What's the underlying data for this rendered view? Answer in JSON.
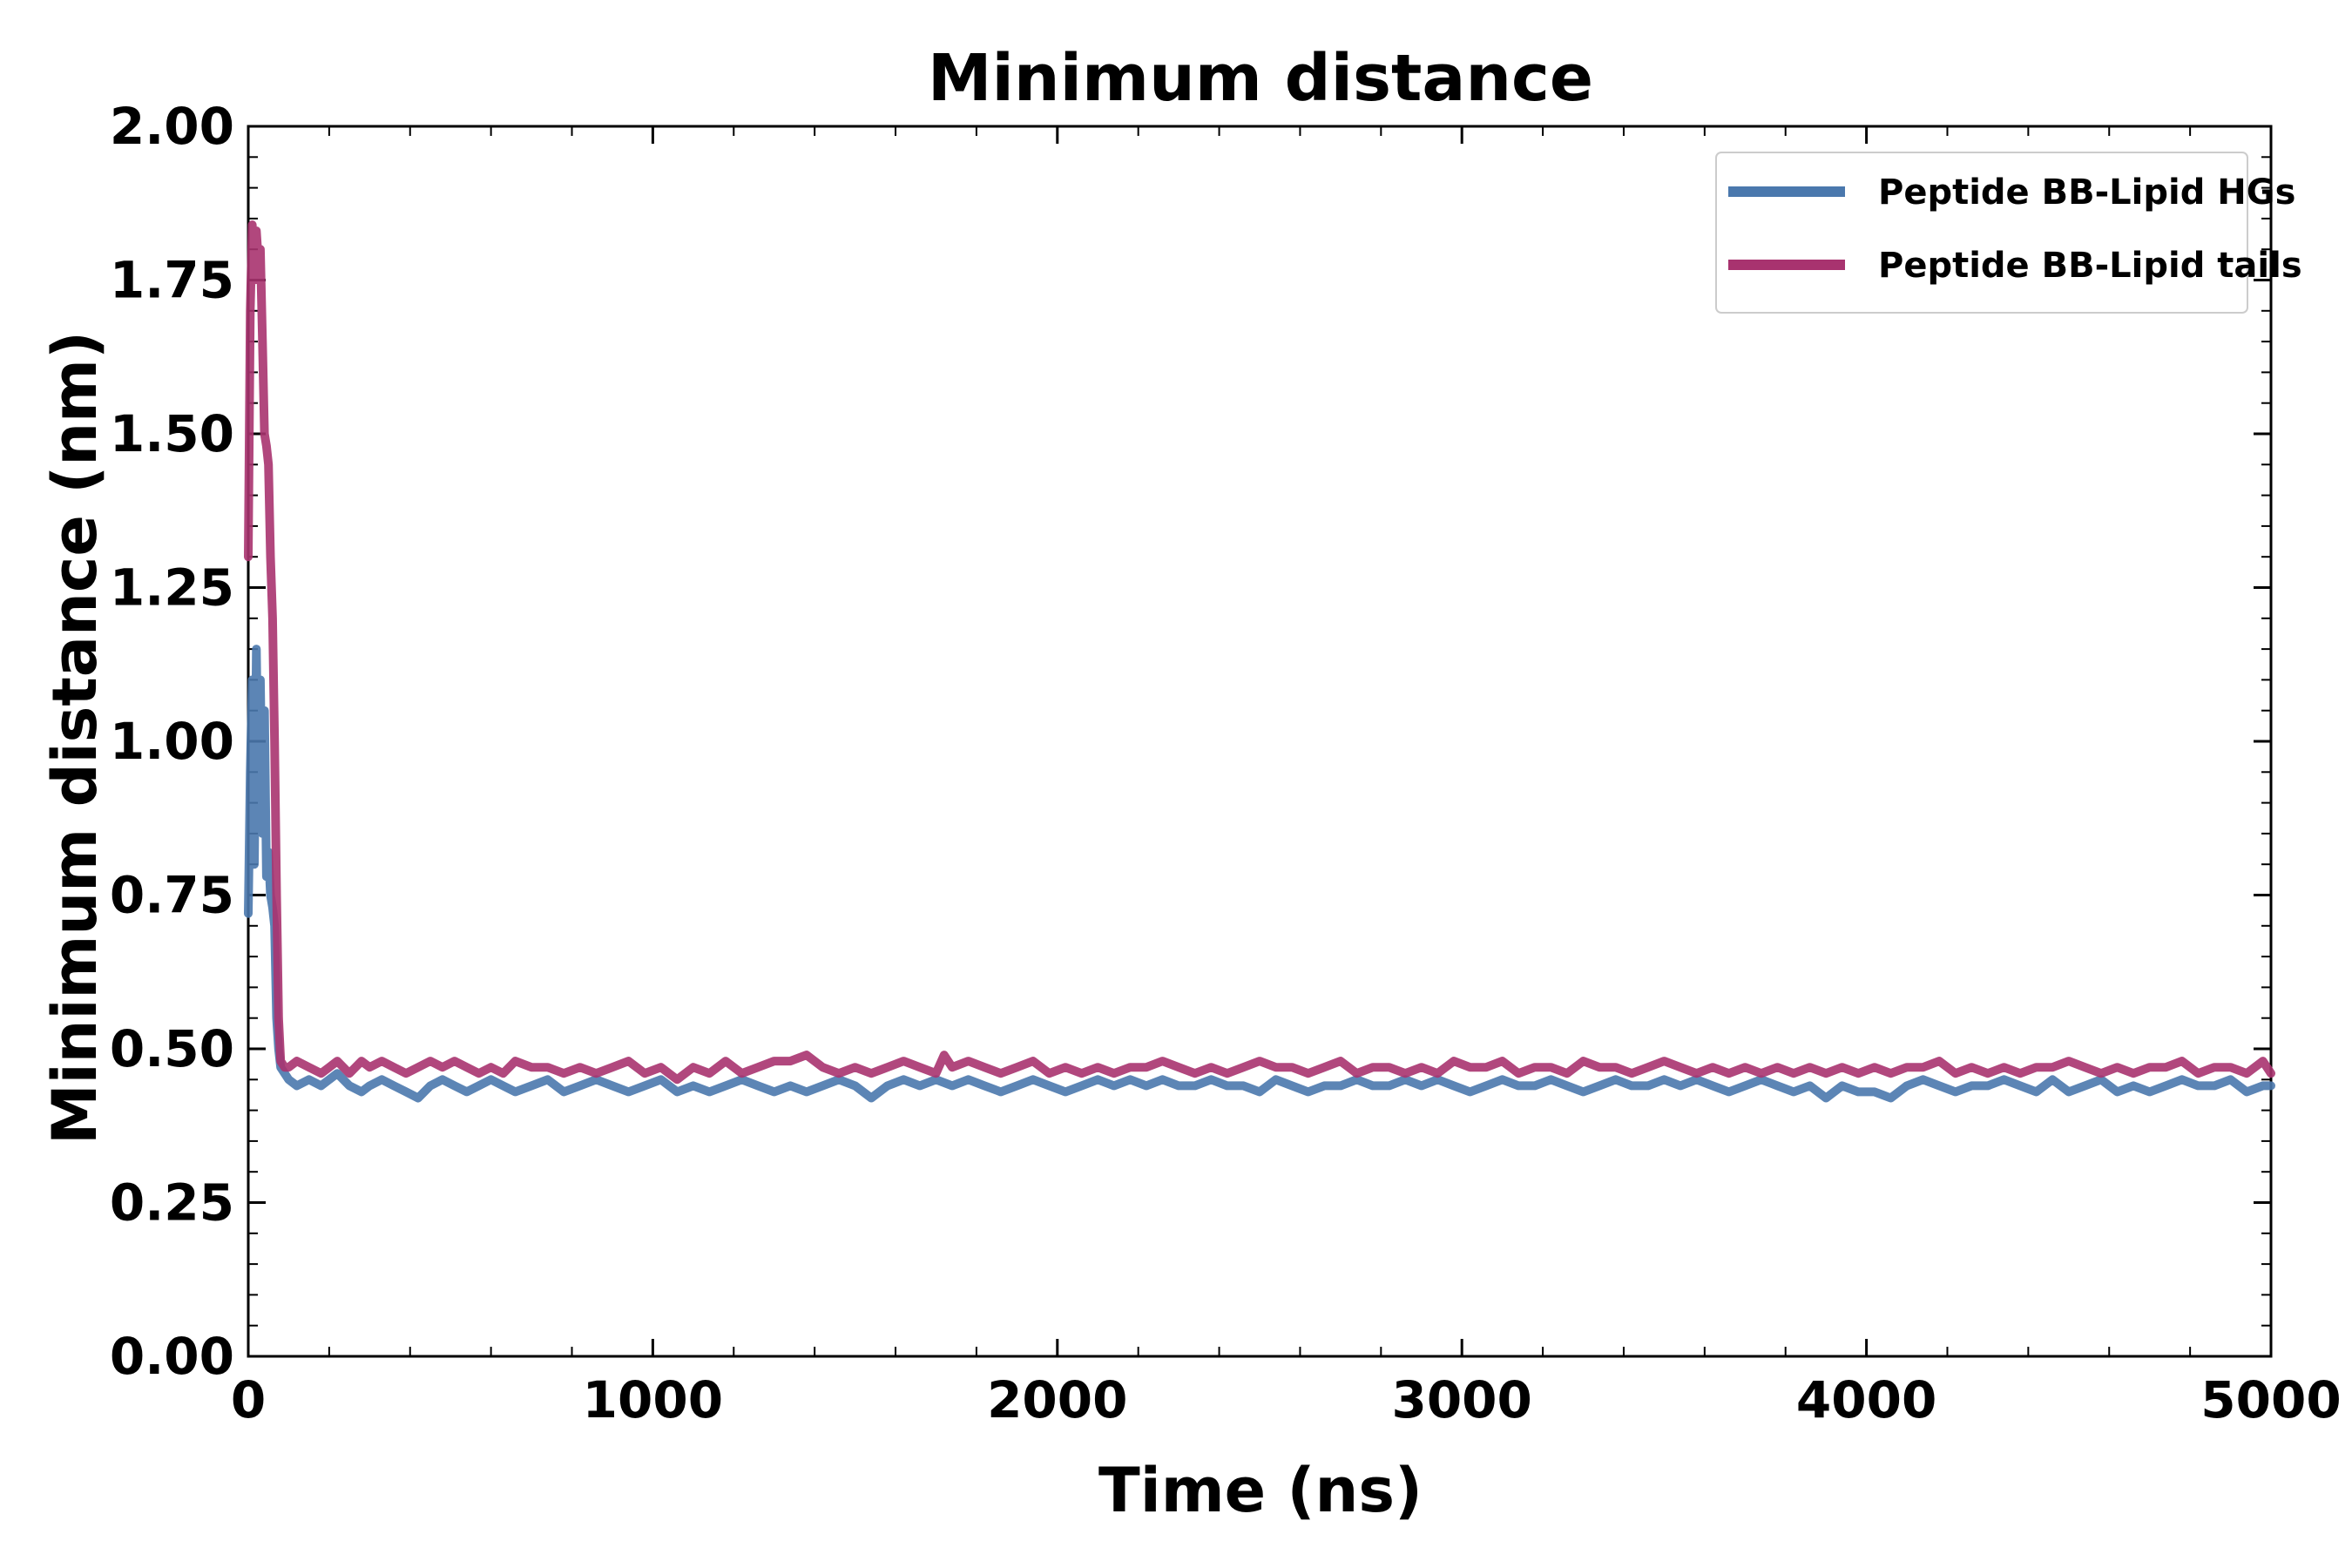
{
  "chart_data": {
    "type": "line",
    "title": "Minimum distance",
    "xlabel": "Time (ns)",
    "ylabel": "Minimum distance (nm)",
    "xlim": [
      0,
      5000
    ],
    "ylim": [
      0.0,
      2.0
    ],
    "xticks": [
      0,
      1000,
      2000,
      3000,
      4000,
      5000
    ],
    "xtick_labels": [
      "0",
      "1000",
      "2000",
      "3000",
      "4000",
      "5000"
    ],
    "yticks": [
      0.0,
      0.25,
      0.5,
      0.75,
      1.0,
      1.25,
      1.5,
      1.75,
      2.0
    ],
    "ytick_labels": [
      "0.00",
      "0.25",
      "0.50",
      "0.75",
      "1.00",
      "1.25",
      "1.50",
      "1.75",
      "2.00"
    ],
    "x_minor_step": 200,
    "y_minor_step": 0.05,
    "grid": false,
    "legend_position": "top-right",
    "series": [
      {
        "name": "Peptide BB-Lipid HGs",
        "color": "#4a78ad",
        "data": [
          [
            0,
            0.72
          ],
          [
            5,
            0.95
          ],
          [
            10,
            1.1
          ],
          [
            15,
            0.8
          ],
          [
            20,
            1.15
          ],
          [
            25,
            0.9
          ],
          [
            30,
            1.1
          ],
          [
            35,
            0.85
          ],
          [
            40,
            1.05
          ],
          [
            45,
            0.78
          ],
          [
            50,
            0.82
          ],
          [
            55,
            0.75
          ],
          [
            60,
            0.73
          ],
          [
            65,
            0.7
          ],
          [
            70,
            0.55
          ],
          [
            75,
            0.5
          ],
          [
            80,
            0.47
          ],
          [
            90,
            0.46
          ],
          [
            100,
            0.45
          ],
          [
            120,
            0.44
          ],
          [
            150,
            0.45
          ],
          [
            180,
            0.44
          ],
          [
            200,
            0.45
          ],
          [
            220,
            0.46
          ],
          [
            250,
            0.44
          ],
          [
            280,
            0.43
          ],
          [
            300,
            0.44
          ],
          [
            330,
            0.45
          ],
          [
            360,
            0.44
          ],
          [
            390,
            0.43
          ],
          [
            420,
            0.42
          ],
          [
            450,
            0.44
          ],
          [
            480,
            0.45
          ],
          [
            510,
            0.44
          ],
          [
            540,
            0.43
          ],
          [
            570,
            0.44
          ],
          [
            600,
            0.45
          ],
          [
            630,
            0.44
          ],
          [
            660,
            0.43
          ],
          [
            700,
            0.44
          ],
          [
            740,
            0.45
          ],
          [
            780,
            0.43
          ],
          [
            820,
            0.44
          ],
          [
            860,
            0.45
          ],
          [
            900,
            0.44
          ],
          [
            940,
            0.43
          ],
          [
            980,
            0.44
          ],
          [
            1020,
            0.45
          ],
          [
            1060,
            0.43
          ],
          [
            1100,
            0.44
          ],
          [
            1140,
            0.43
          ],
          [
            1180,
            0.44
          ],
          [
            1220,
            0.45
          ],
          [
            1260,
            0.44
          ],
          [
            1300,
            0.43
          ],
          [
            1340,
            0.44
          ],
          [
            1380,
            0.43
          ],
          [
            1420,
            0.44
          ],
          [
            1460,
            0.45
          ],
          [
            1500,
            0.44
          ],
          [
            1540,
            0.42
          ],
          [
            1580,
            0.44
          ],
          [
            1620,
            0.45
          ],
          [
            1660,
            0.44
          ],
          [
            1700,
            0.45
          ],
          [
            1740,
            0.44
          ],
          [
            1780,
            0.45
          ],
          [
            1820,
            0.44
          ],
          [
            1860,
            0.43
          ],
          [
            1900,
            0.44
          ],
          [
            1940,
            0.45
          ],
          [
            1980,
            0.44
          ],
          [
            2020,
            0.43
          ],
          [
            2060,
            0.44
          ],
          [
            2100,
            0.45
          ],
          [
            2140,
            0.44
          ],
          [
            2180,
            0.45
          ],
          [
            2220,
            0.44
          ],
          [
            2260,
            0.45
          ],
          [
            2300,
            0.44
          ],
          [
            2340,
            0.44
          ],
          [
            2380,
            0.45
          ],
          [
            2420,
            0.44
          ],
          [
            2460,
            0.44
          ],
          [
            2500,
            0.43
          ],
          [
            2540,
            0.45
          ],
          [
            2580,
            0.44
          ],
          [
            2620,
            0.43
          ],
          [
            2660,
            0.44
          ],
          [
            2700,
            0.44
          ],
          [
            2740,
            0.45
          ],
          [
            2780,
            0.44
          ],
          [
            2820,
            0.44
          ],
          [
            2860,
            0.45
          ],
          [
            2900,
            0.44
          ],
          [
            2940,
            0.45
          ],
          [
            2980,
            0.44
          ],
          [
            3020,
            0.43
          ],
          [
            3060,
            0.44
          ],
          [
            3100,
            0.45
          ],
          [
            3140,
            0.44
          ],
          [
            3180,
            0.44
          ],
          [
            3220,
            0.45
          ],
          [
            3260,
            0.44
          ],
          [
            3300,
            0.43
          ],
          [
            3340,
            0.44
          ],
          [
            3380,
            0.45
          ],
          [
            3420,
            0.44
          ],
          [
            3460,
            0.44
          ],
          [
            3500,
            0.45
          ],
          [
            3540,
            0.44
          ],
          [
            3580,
            0.45
          ],
          [
            3620,
            0.44
          ],
          [
            3660,
            0.43
          ],
          [
            3700,
            0.44
          ],
          [
            3740,
            0.45
          ],
          [
            3780,
            0.44
          ],
          [
            3820,
            0.43
          ],
          [
            3860,
            0.44
          ],
          [
            3900,
            0.42
          ],
          [
            3940,
            0.44
          ],
          [
            3980,
            0.43
          ],
          [
            4020,
            0.43
          ],
          [
            4060,
            0.42
          ],
          [
            4100,
            0.44
          ],
          [
            4140,
            0.45
          ],
          [
            4180,
            0.44
          ],
          [
            4220,
            0.43
          ],
          [
            4260,
            0.44
          ],
          [
            4300,
            0.44
          ],
          [
            4340,
            0.45
          ],
          [
            4380,
            0.44
          ],
          [
            4420,
            0.43
          ],
          [
            4460,
            0.45
          ],
          [
            4500,
            0.43
          ],
          [
            4540,
            0.44
          ],
          [
            4580,
            0.45
          ],
          [
            4620,
            0.43
          ],
          [
            4660,
            0.44
          ],
          [
            4700,
            0.43
          ],
          [
            4740,
            0.44
          ],
          [
            4780,
            0.45
          ],
          [
            4820,
            0.44
          ],
          [
            4860,
            0.44
          ],
          [
            4900,
            0.45
          ],
          [
            4940,
            0.43
          ],
          [
            4980,
            0.44
          ],
          [
            5000,
            0.44
          ]
        ]
      },
      {
        "name": "Peptide BB-Lipid tails",
        "color": "#a8336f",
        "data": [
          [
            0,
            1.3
          ],
          [
            5,
            1.7
          ],
          [
            10,
            1.84
          ],
          [
            15,
            1.75
          ],
          [
            20,
            1.83
          ],
          [
            25,
            1.78
          ],
          [
            30,
            1.8
          ],
          [
            35,
            1.65
          ],
          [
            40,
            1.5
          ],
          [
            45,
            1.48
          ],
          [
            50,
            1.45
          ],
          [
            55,
            1.3
          ],
          [
            60,
            1.2
          ],
          [
            65,
            1.0
          ],
          [
            70,
            0.75
          ],
          [
            75,
            0.55
          ],
          [
            80,
            0.48
          ],
          [
            90,
            0.47
          ],
          [
            100,
            0.47
          ],
          [
            120,
            0.48
          ],
          [
            150,
            0.47
          ],
          [
            180,
            0.46
          ],
          [
            200,
            0.47
          ],
          [
            220,
            0.48
          ],
          [
            250,
            0.46
          ],
          [
            280,
            0.48
          ],
          [
            300,
            0.47
          ],
          [
            330,
            0.48
          ],
          [
            360,
            0.47
          ],
          [
            390,
            0.46
          ],
          [
            420,
            0.47
          ],
          [
            450,
            0.48
          ],
          [
            480,
            0.47
          ],
          [
            510,
            0.48
          ],
          [
            540,
            0.47
          ],
          [
            570,
            0.46
          ],
          [
            600,
            0.47
          ],
          [
            630,
            0.46
          ],
          [
            660,
            0.48
          ],
          [
            700,
            0.47
          ],
          [
            740,
            0.47
          ],
          [
            780,
            0.46
          ],
          [
            820,
            0.47
          ],
          [
            860,
            0.46
          ],
          [
            900,
            0.47
          ],
          [
            940,
            0.48
          ],
          [
            980,
            0.46
          ],
          [
            1020,
            0.47
          ],
          [
            1060,
            0.45
          ],
          [
            1100,
            0.47
          ],
          [
            1140,
            0.46
          ],
          [
            1180,
            0.48
          ],
          [
            1220,
            0.46
          ],
          [
            1260,
            0.47
          ],
          [
            1300,
            0.48
          ],
          [
            1340,
            0.48
          ],
          [
            1380,
            0.49
          ],
          [
            1420,
            0.47
          ],
          [
            1460,
            0.46
          ],
          [
            1500,
            0.47
          ],
          [
            1540,
            0.46
          ],
          [
            1580,
            0.47
          ],
          [
            1620,
            0.48
          ],
          [
            1660,
            0.47
          ],
          [
            1700,
            0.46
          ],
          [
            1720,
            0.49
          ],
          [
            1740,
            0.47
          ],
          [
            1780,
            0.48
          ],
          [
            1820,
            0.47
          ],
          [
            1860,
            0.46
          ],
          [
            1900,
            0.47
          ],
          [
            1940,
            0.48
          ],
          [
            1980,
            0.46
          ],
          [
            2020,
            0.47
          ],
          [
            2060,
            0.46
          ],
          [
            2100,
            0.47
          ],
          [
            2140,
            0.46
          ],
          [
            2180,
            0.47
          ],
          [
            2220,
            0.47
          ],
          [
            2260,
            0.48
          ],
          [
            2300,
            0.47
          ],
          [
            2340,
            0.46
          ],
          [
            2380,
            0.47
          ],
          [
            2420,
            0.46
          ],
          [
            2460,
            0.47
          ],
          [
            2500,
            0.48
          ],
          [
            2540,
            0.47
          ],
          [
            2580,
            0.47
          ],
          [
            2620,
            0.46
          ],
          [
            2660,
            0.47
          ],
          [
            2700,
            0.48
          ],
          [
            2740,
            0.46
          ],
          [
            2780,
            0.47
          ],
          [
            2820,
            0.47
          ],
          [
            2860,
            0.46
          ],
          [
            2900,
            0.47
          ],
          [
            2940,
            0.46
          ],
          [
            2980,
            0.48
          ],
          [
            3020,
            0.47
          ],
          [
            3060,
            0.47
          ],
          [
            3100,
            0.48
          ],
          [
            3140,
            0.46
          ],
          [
            3180,
            0.47
          ],
          [
            3220,
            0.47
          ],
          [
            3260,
            0.46
          ],
          [
            3300,
            0.48
          ],
          [
            3340,
            0.47
          ],
          [
            3380,
            0.47
          ],
          [
            3420,
            0.46
          ],
          [
            3460,
            0.47
          ],
          [
            3500,
            0.48
          ],
          [
            3540,
            0.47
          ],
          [
            3580,
            0.46
          ],
          [
            3620,
            0.47
          ],
          [
            3660,
            0.46
          ],
          [
            3700,
            0.47
          ],
          [
            3740,
            0.46
          ],
          [
            3780,
            0.47
          ],
          [
            3820,
            0.46
          ],
          [
            3860,
            0.47
          ],
          [
            3900,
            0.46
          ],
          [
            3940,
            0.47
          ],
          [
            3980,
            0.46
          ],
          [
            4020,
            0.47
          ],
          [
            4060,
            0.46
          ],
          [
            4100,
            0.47
          ],
          [
            4140,
            0.47
          ],
          [
            4180,
            0.48
          ],
          [
            4220,
            0.46
          ],
          [
            4260,
            0.47
          ],
          [
            4300,
            0.46
          ],
          [
            4340,
            0.47
          ],
          [
            4380,
            0.46
          ],
          [
            4420,
            0.47
          ],
          [
            4460,
            0.47
          ],
          [
            4500,
            0.48
          ],
          [
            4540,
            0.47
          ],
          [
            4580,
            0.46
          ],
          [
            4620,
            0.47
          ],
          [
            4660,
            0.46
          ],
          [
            4700,
            0.47
          ],
          [
            4740,
            0.47
          ],
          [
            4780,
            0.48
          ],
          [
            4820,
            0.46
          ],
          [
            4860,
            0.47
          ],
          [
            4900,
            0.47
          ],
          [
            4940,
            0.46
          ],
          [
            4980,
            0.48
          ],
          [
            5000,
            0.46
          ]
        ]
      }
    ]
  }
}
